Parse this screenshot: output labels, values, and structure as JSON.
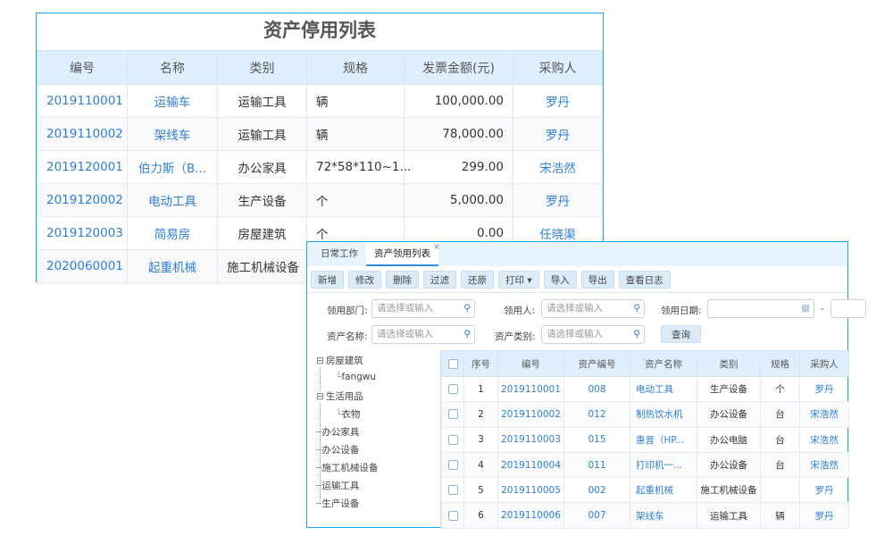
{
  "back": {
    "title": "资产停用列表",
    "headers": [
      "编号",
      "名称",
      "类别",
      "规格",
      "发票金额(元)",
      "采购人"
    ],
    "rows": [
      [
        "2019110001",
        "运输车",
        "运输工具",
        "辆",
        "100,000.00",
        "罗丹"
      ],
      [
        "2019110002",
        "架线车",
        "运输工具",
        "辆",
        "78,000.00",
        "罗丹"
      ],
      [
        "2019120001",
        "伯力斯（B...",
        "办公家具",
        "72*58*110~1...",
        "299.00",
        "宋浩然"
      ],
      [
        "2019120002",
        "电动工具",
        "生产设备",
        "个",
        "5,000.00",
        "罗丹"
      ],
      [
        "2019120003",
        "简易房",
        "房屋建筑",
        "个",
        "0.00",
        "任晓渠"
      ],
      [
        "2020060001",
        "起重机械",
        "施工机械设备",
        "",
        "",
        ""
      ]
    ]
  },
  "front": {
    "tabs": [
      "日常工作",
      "资产领用列表"
    ],
    "toolbar": [
      "新增",
      "修改",
      "删除",
      "过滤",
      "还原",
      "打印 ▾",
      "导入",
      "导出",
      "查看日志"
    ],
    "filters": {
      "dept_label": "领用部门:",
      "user_label": "领用人:",
      "date_label": "领用日期:",
      "name_label": "资产名称:",
      "type_label": "资产类别:",
      "placeholder": "请选择或输入",
      "date_sep": "-",
      "query": "查询"
    },
    "tree": [
      {
        "label": "房屋建筑",
        "expand": "⊟",
        "level": 0
      },
      {
        "label": "fangwu",
        "level": 1
      },
      {
        "label": "生活用品",
        "expand": "⊟",
        "level": 0
      },
      {
        "label": "衣物",
        "level": 1
      },
      {
        "label": "办公家具",
        "level": 0
      },
      {
        "label": "办公设备",
        "level": 0
      },
      {
        "label": "施工机械设备",
        "level": 0
      },
      {
        "label": "运输工具",
        "level": 0
      },
      {
        "label": "生产设备",
        "level": 0
      }
    ],
    "headers": [
      "序号",
      "编号",
      "资产编号",
      "资产名称",
      "类别",
      "规格",
      "采购人"
    ],
    "rows": [
      [
        "1",
        "2019110001",
        "008",
        "电动工具",
        "生产设备",
        "个",
        "罗丹"
      ],
      [
        "2",
        "2019110002",
        "012",
        "制热饮水机",
        "办公设备",
        "台",
        "宋浩然"
      ],
      [
        "3",
        "2019110003",
        "015",
        "惠普（HP...",
        "办公电脑",
        "台",
        "宋浩然"
      ],
      [
        "4",
        "2019110004",
        "011",
        "打印机一...",
        "办公设备",
        "台",
        "宋浩然"
      ],
      [
        "5",
        "2019110005",
        "002",
        "起重机械",
        "施工机械设备",
        "",
        "罗丹"
      ],
      [
        "6",
        "2019110006",
        "007",
        "架线车",
        "运输工具",
        "辆",
        "罗丹"
      ]
    ]
  },
  "colors": {
    "accent": "#1aa3e8",
    "link": "#2d7fd6",
    "header_bg": "#e0efff"
  }
}
